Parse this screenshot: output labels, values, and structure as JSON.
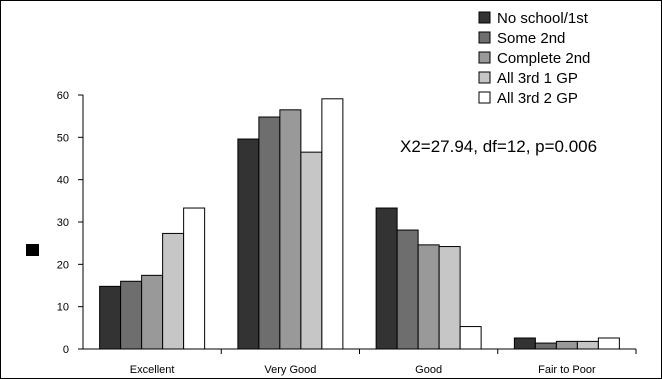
{
  "chart_data": {
    "type": "bar",
    "categories": [
      "Excellent",
      "Very Good",
      "Good",
      "Fair to Poor"
    ],
    "series": [
      {
        "name": "No school/1st",
        "color": "#333333",
        "values": [
          14.8,
          49.6,
          33.3,
          2.6
        ]
      },
      {
        "name": "Some 2nd",
        "color": "#6e6e6e",
        "values": [
          16.0,
          54.8,
          28.1,
          1.4
        ]
      },
      {
        "name": "Complete 2nd",
        "color": "#999999",
        "values": [
          17.4,
          56.5,
          24.6,
          1.8
        ]
      },
      {
        "name": "All 3rd 1 GP",
        "color": "#c6c6c6",
        "values": [
          27.3,
          46.5,
          24.2,
          1.8
        ]
      },
      {
        "name": "All 3rd 2 GP",
        "color": "#ffffff",
        "values": [
          33.3,
          59.1,
          5.3,
          2.6
        ]
      }
    ],
    "y_ticks": [
      0,
      10,
      20,
      30,
      40,
      50,
      60
    ],
    "ylim": [
      0,
      60
    ],
    "annotation": "X2=27.94, df=12, p=0.006",
    "legend_position": "top-right",
    "grid": false
  }
}
